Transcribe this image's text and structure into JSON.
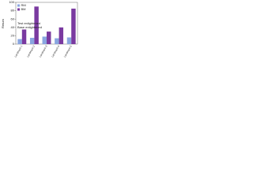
{
  "chart_data": {
    "type": "bar",
    "y_label": "Return",
    "categories": [
      "Landmark 1",
      "Landmark 2",
      "Landmark 3",
      "Landmark 4",
      "Landmark 5"
    ],
    "series": [
      {
        "name": "RM",
        "color": "#8aa6e0",
        "values": [
          12,
          15,
          18,
          14,
          16
        ]
      },
      {
        "name": "BM",
        "color": "#7a3aa0",
        "values": [
          35,
          90,
          30,
          40,
          85
        ]
      }
    ],
    "annotations": [
      "Test enlightened",
      "Base enlightened"
    ],
    "ylim": [
      0,
      100
    ],
    "yticks": [
      0,
      20,
      40,
      60,
      80,
      100
    ],
    "grid": false,
    "legend": "upper left"
  }
}
